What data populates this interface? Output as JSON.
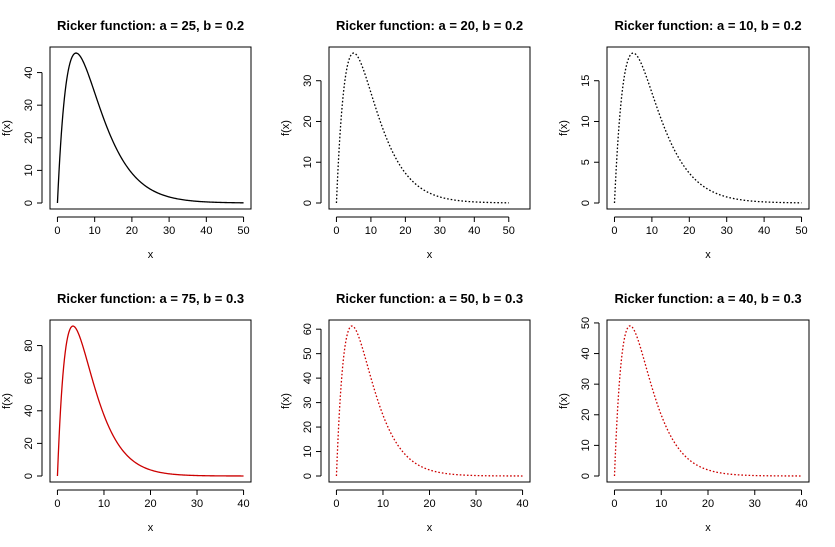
{
  "chart_data": [
    {
      "type": "line",
      "title": "Ricker function: a = 25, b = 0.2",
      "xlabel": "x",
      "ylabel": "f(x)",
      "function": "f(x) = a * x * exp(-b * x)",
      "params": {
        "a": 25,
        "b": 0.2
      },
      "x_range": [
        0,
        50
      ],
      "xlim": [
        0,
        50
      ],
      "ylim": [
        0,
        46
      ],
      "xticks": [
        0,
        10,
        20,
        30,
        40,
        50
      ],
      "yticks": [
        0,
        10,
        20,
        30,
        40
      ],
      "line_style": "solid",
      "color": "#000000",
      "grid": false
    },
    {
      "type": "line",
      "title": "Ricker function: a = 20, b = 0.2",
      "xlabel": "x",
      "ylabel": "f(x)",
      "function": "f(x) = a * x * exp(-b * x)",
      "params": {
        "a": 20,
        "b": 0.2
      },
      "x_range": [
        0,
        50
      ],
      "xlim": [
        0,
        54
      ],
      "ylim": [
        0,
        36.8
      ],
      "xticks": [
        0,
        10,
        20,
        30,
        40,
        50
      ],
      "yticks": [
        0,
        10,
        20,
        30
      ],
      "line_style": "dotted",
      "color": "#000000",
      "grid": false
    },
    {
      "type": "line",
      "title": "Ricker function: a = 10, b = 0.2",
      "xlabel": "x",
      "ylabel": "f(x)",
      "function": "f(x) = a * x * exp(-b * x)",
      "params": {
        "a": 10,
        "b": 0.2
      },
      "x_range": [
        0,
        50
      ],
      "xlim": [
        0,
        50
      ],
      "ylim": [
        0,
        18.4
      ],
      "xticks": [
        0,
        10,
        20,
        30,
        40,
        50
      ],
      "yticks": [
        0,
        5,
        10,
        15
      ],
      "line_style": "dotted",
      "color": "#000000",
      "grid": false
    },
    {
      "type": "line",
      "title": "Ricker function: a = 75, b = 0.3",
      "xlabel": "x",
      "ylabel": "f(x)",
      "function": "f(x) = a * x * exp(-b * x)",
      "params": {
        "a": 75,
        "b": 0.3
      },
      "x_range": [
        0,
        40
      ],
      "xlim": [
        0,
        40
      ],
      "ylim": [
        0,
        92
      ],
      "xticks": [
        0,
        10,
        20,
        30,
        40
      ],
      "yticks": [
        0,
        20,
        40,
        60,
        80
      ],
      "line_style": "solid",
      "color": "#cc0000",
      "grid": false
    },
    {
      "type": "line",
      "title": "Ricker function: a = 50, b = 0.3",
      "xlabel": "x",
      "ylabel": "f(x)",
      "function": "f(x) = a * x * exp(-b * x)",
      "params": {
        "a": 50,
        "b": 0.3
      },
      "x_range": [
        0,
        40
      ],
      "xlim": [
        0,
        40
      ],
      "ylim": [
        0,
        61.3
      ],
      "xticks": [
        0,
        10,
        20,
        30,
        40
      ],
      "yticks": [
        0,
        10,
        20,
        30,
        40,
        50,
        60
      ],
      "line_style": "dotted",
      "color": "#cc0000",
      "grid": false
    },
    {
      "type": "line",
      "title": "Ricker function: a = 40, b = 0.3",
      "xlabel": "x",
      "ylabel": "f(x)",
      "function": "f(x) = a * x * exp(-b * x)",
      "params": {
        "a": 40,
        "b": 0.3
      },
      "x_range": [
        0,
        40
      ],
      "xlim": [
        0,
        40
      ],
      "ylim": [
        0,
        49
      ],
      "xticks": [
        0,
        10,
        20,
        30,
        40
      ],
      "yticks": [
        0,
        10,
        20,
        30,
        40,
        50
      ],
      "line_style": "dotted",
      "color": "#cc0000",
      "grid": false
    }
  ]
}
